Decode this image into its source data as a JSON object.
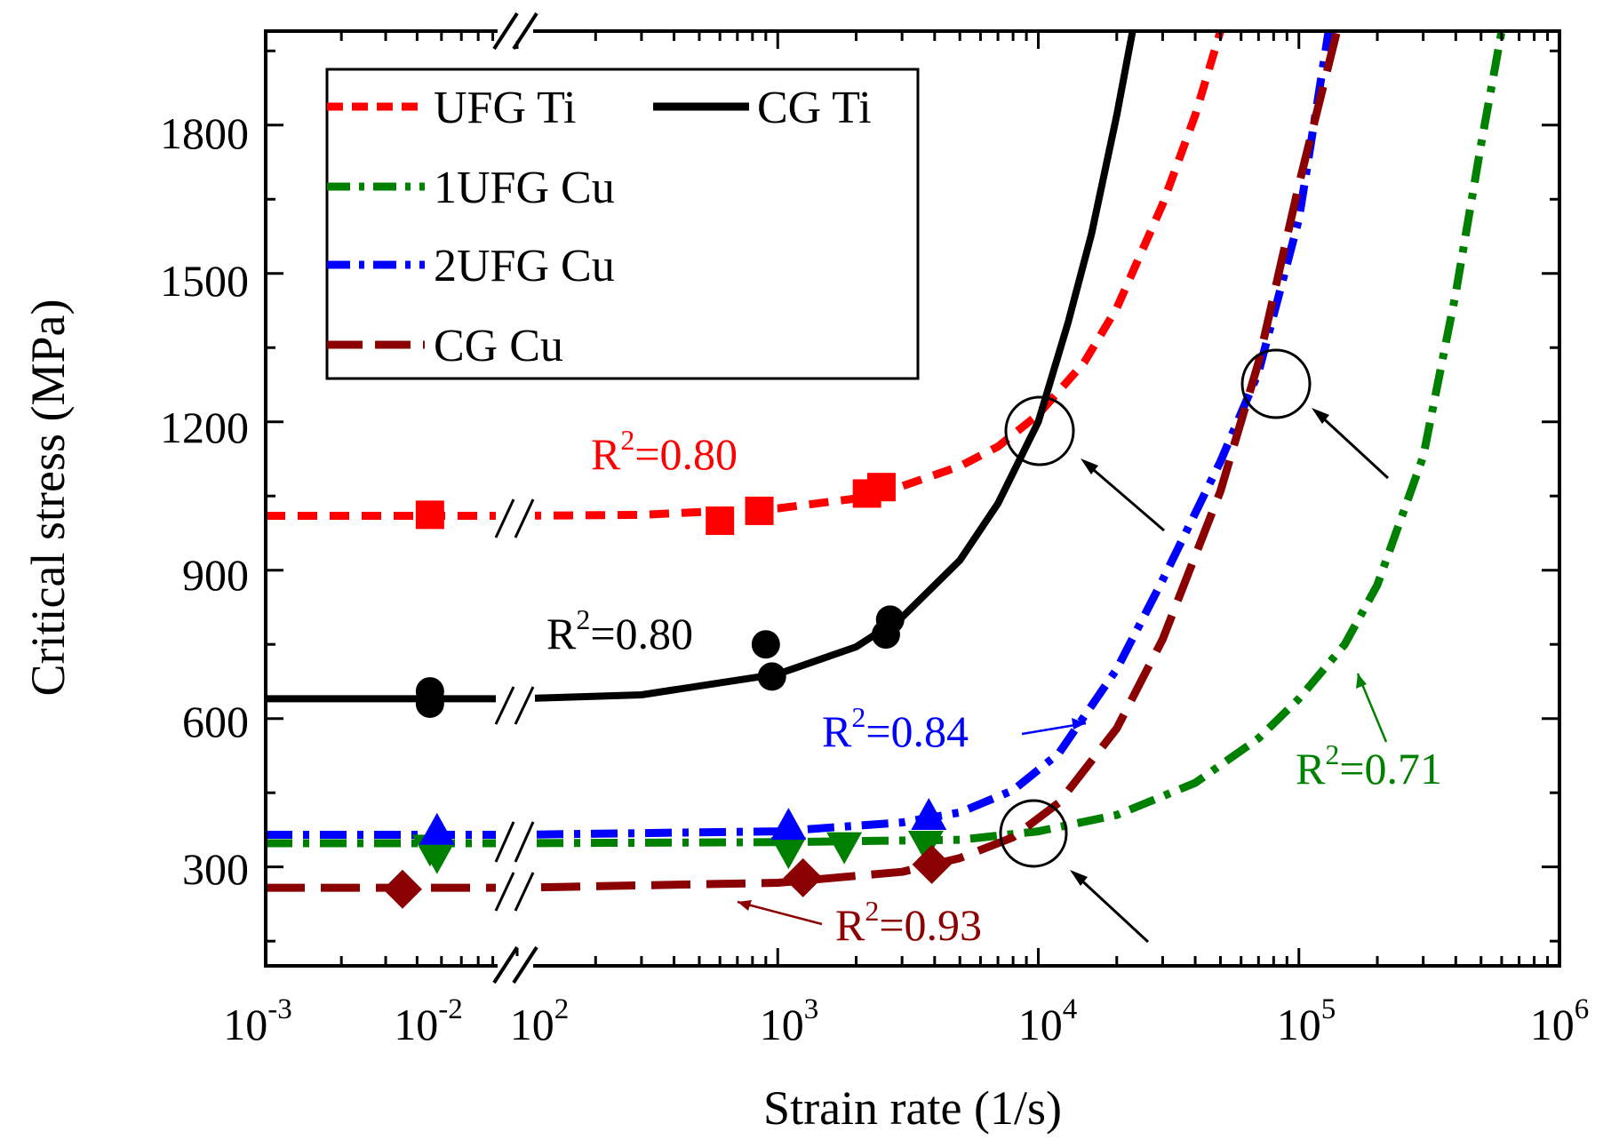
{
  "chart_data": {
    "type": "line",
    "xlabel": "Strain rate (1/s)",
    "ylabel": "Critical stress (MPa)",
    "x_scale": "log",
    "x_axis_break": {
      "from": 0.01,
      "to": 100
    },
    "xlim": [
      0.001,
      1000000
    ],
    "ylim": [
      100,
      1990
    ],
    "grid": false,
    "x_ticks": [
      {
        "value": 0.001,
        "base": "10",
        "exp": "-3"
      },
      {
        "value": 0.01,
        "base": "10",
        "exp": "-2"
      },
      {
        "value": 100,
        "base": "10",
        "exp": "2"
      },
      {
        "value": 1000,
        "base": "10",
        "exp": "3"
      },
      {
        "value": 10000,
        "base": "10",
        "exp": "4"
      },
      {
        "value": 100000,
        "base": "10",
        "exp": "5"
      },
      {
        "value": 1000000,
        "base": "10",
        "exp": "6"
      }
    ],
    "y_ticks": [
      "300",
      "600",
      "900",
      "1200",
      "1500",
      "1800"
    ],
    "legend": {
      "placement": "top-left",
      "entries": [
        "UFG Ti",
        "CG Ti",
        "1UFG Cu",
        "2UFG Cu",
        "CG Cu"
      ]
    },
    "series": [
      {
        "name": "UFG Ti",
        "color": "#ff0000",
        "line_style": "short-dash",
        "marker": "square",
        "curve": [
          [
            0.001,
            1010
          ],
          [
            0.01,
            1010
          ],
          [
            100,
            1010
          ],
          [
            300,
            1012
          ],
          [
            1000,
            1025
          ],
          [
            2000,
            1045
          ],
          [
            3000,
            1070
          ],
          [
            5000,
            1110
          ],
          [
            7000,
            1150
          ],
          [
            10000,
            1215
          ],
          [
            15000,
            1320
          ],
          [
            20000,
            1430
          ],
          [
            30000,
            1640
          ],
          [
            40000,
            1820
          ],
          [
            50000,
            1990
          ]
        ],
        "points": [
          [
            0.0045,
            1012
          ],
          [
            600,
            1000
          ],
          [
            850,
            1020
          ],
          [
            2200,
            1055
          ],
          [
            2500,
            1068
          ]
        ],
        "r2": {
          "sup_base": "R",
          "sup": "2",
          "value": "=0.80"
        }
      },
      {
        "name": "CG Ti",
        "color": "#000000",
        "line_style": "solid",
        "marker": "circle",
        "curve": [
          [
            0.001,
            640
          ],
          [
            0.01,
            640
          ],
          [
            100,
            640
          ],
          [
            300,
            648
          ],
          [
            1000,
            690
          ],
          [
            2000,
            745
          ],
          [
            3000,
            805
          ],
          [
            5000,
            920
          ],
          [
            7000,
            1035
          ],
          [
            10000,
            1200
          ],
          [
            13000,
            1400
          ],
          [
            16000,
            1580
          ],
          [
            20000,
            1820
          ],
          [
            23000,
            1990
          ]
        ],
        "points": [
          [
            0.0045,
            655
          ],
          [
            0.0045,
            630
          ],
          [
            900,
            750
          ],
          [
            950,
            685
          ],
          [
            2700,
            800
          ],
          [
            2600,
            770
          ]
        ],
        "r2": {
          "sup_base": "R",
          "sup": "2",
          "value": "=0.80"
        }
      },
      {
        "name": "1UFG Cu",
        "color": "#008000",
        "line_style": "dash-dot",
        "marker": "triangle-down",
        "curve": [
          [
            0.001,
            348
          ],
          [
            0.01,
            348
          ],
          [
            100,
            348
          ],
          [
            1000,
            350
          ],
          [
            5000,
            355
          ],
          [
            10000,
            372
          ],
          [
            20000,
            405
          ],
          [
            40000,
            470
          ],
          [
            70000,
            560
          ],
          [
            100000,
            640
          ],
          [
            150000,
            750
          ],
          [
            200000,
            870
          ],
          [
            300000,
            1130
          ],
          [
            400000,
            1460
          ],
          [
            500000,
            1760
          ],
          [
            600000,
            1990
          ]
        ],
        "points": [
          [
            0.0045,
            340
          ],
          [
            0.0048,
            325
          ],
          [
            1100,
            335
          ],
          [
            1800,
            345
          ],
          [
            3700,
            348
          ]
        ],
        "r2": {
          "sup_base": "R",
          "sup": "2",
          "value": "=0.71"
        }
      },
      {
        "name": "2UFG Cu",
        "color": "#0000ff",
        "line_style": "dash-dot",
        "marker": "triangle-up",
        "curve": [
          [
            0.001,
            365
          ],
          [
            0.01,
            365
          ],
          [
            100,
            365
          ],
          [
            1000,
            372
          ],
          [
            3000,
            390
          ],
          [
            5000,
            410
          ],
          [
            8000,
            455
          ],
          [
            12000,
            530
          ],
          [
            20000,
            700
          ],
          [
            30000,
            880
          ],
          [
            50000,
            1120
          ],
          [
            70000,
            1300
          ],
          [
            100000,
            1610
          ],
          [
            130000,
            1990
          ]
        ],
        "points": [
          [
            0.0048,
            370
          ],
          [
            1100,
            380
          ],
          [
            3800,
            400
          ]
        ],
        "r2": {
          "sup_base": "R",
          "sup": "2",
          "value": "=0.84"
        }
      },
      {
        "name": "CG Cu",
        "color": "#8b0000",
        "line_style": "long-dash",
        "marker": "diamond",
        "curve": [
          [
            0.001,
            258
          ],
          [
            0.01,
            258
          ],
          [
            100,
            258
          ],
          [
            1000,
            268
          ],
          [
            3000,
            290
          ],
          [
            5000,
            318
          ],
          [
            8000,
            360
          ],
          [
            12000,
            430
          ],
          [
            20000,
            580
          ],
          [
            30000,
            760
          ],
          [
            50000,
            1060
          ],
          [
            70000,
            1320
          ],
          [
            100000,
            1680
          ],
          [
            140000,
            1990
          ]
        ],
        "points": [
          [
            0.0035,
            255
          ],
          [
            1250,
            278
          ],
          [
            3900,
            305
          ]
        ],
        "r2": {
          "sup_base": "R",
          "sup": "2",
          "value": "=0.93"
        }
      }
    ]
  }
}
